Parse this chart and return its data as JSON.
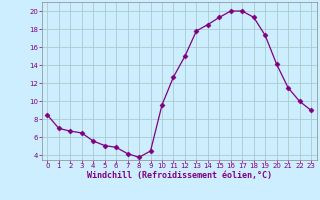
{
  "x": [
    0,
    1,
    2,
    3,
    4,
    5,
    6,
    7,
    8,
    9,
    10,
    11,
    12,
    13,
    14,
    15,
    16,
    17,
    18,
    19,
    20,
    21,
    22,
    23
  ],
  "y": [
    8.5,
    7.0,
    6.7,
    6.5,
    5.6,
    5.1,
    4.9,
    4.2,
    3.8,
    4.5,
    9.6,
    12.7,
    15.0,
    17.8,
    18.5,
    19.3,
    20.0,
    20.0,
    19.3,
    17.3,
    14.1,
    11.5,
    10.0,
    9.0
  ],
  "line_color": "#800080",
  "marker": "D",
  "marker_size": 2.5,
  "bg_color": "#cceeff",
  "grid_color": "#aacccc",
  "axis_color": "#800080",
  "spine_color": "#888888",
  "xlabel": "Windchill (Refroidissement éolien,°C)",
  "ylabel": "",
  "ylim": [
    3.5,
    21.0
  ],
  "xlim": [
    -0.5,
    23.5
  ],
  "yticks": [
    4,
    6,
    8,
    10,
    12,
    14,
    16,
    18,
    20
  ],
  "xticks": [
    0,
    1,
    2,
    3,
    4,
    5,
    6,
    7,
    8,
    9,
    10,
    11,
    12,
    13,
    14,
    15,
    16,
    17,
    18,
    19,
    20,
    21,
    22,
    23
  ],
  "label_fontsize": 6.0,
  "tick_fontsize": 5.0
}
